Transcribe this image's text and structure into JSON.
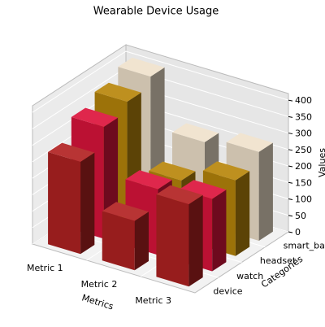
{
  "chart_data": {
    "type": "bar3d",
    "title": "Wearable Device Usage",
    "xlabel": "Metrics",
    "ylabel": "Categories",
    "zlabel": "Values",
    "categories": [
      "Metric 1",
      "Metric 2",
      "Metric 3"
    ],
    "series": [
      {
        "name": "device",
        "color": "#b22222",
        "values": [
          280,
          150,
          250
        ]
      },
      {
        "name": "watch",
        "color": "#dc143c",
        "values": [
          340,
          200,
          220
        ]
      },
      {
        "name": "headset",
        "color": "#b8860b",
        "values": [
          370,
          180,
          230
        ]
      },
      {
        "name": "smart_band",
        "color": "#f0e2cc",
        "values": [
          400,
          250,
          270
        ]
      }
    ],
    "zlim": [
      0,
      420
    ],
    "zticks": [
      0,
      50,
      100,
      150,
      200,
      250,
      300,
      350,
      400
    ],
    "grid": true
  }
}
